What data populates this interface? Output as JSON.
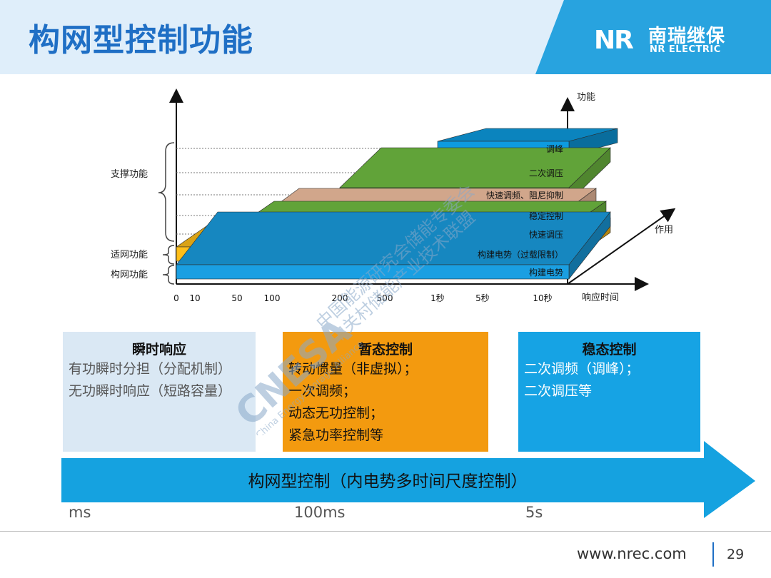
{
  "header": {
    "title": "构网型控制功能",
    "logo_cn": "南瑞继保",
    "logo_en": "NR ELECTRIC"
  },
  "chart": {
    "y_axis_label": "功能",
    "z_axis_label": "作用",
    "x_axis_label": "响应时间",
    "x_ticks": [
      "0",
      "10",
      "50",
      "100",
      "200",
      "500",
      "1秒",
      "5秒",
      "10秒"
    ],
    "groups": [
      {
        "label": "支撑功能"
      },
      {
        "label": "适网功能"
      },
      {
        "label": "构网功能"
      }
    ],
    "bars": [
      {
        "label": "调峰",
        "color": "#0d9be0",
        "start": "1秒",
        "end": "10秒",
        "group": "支撑功能"
      },
      {
        "label": "二次调压",
        "color": "#ffd37a",
        "start": "500",
        "end": "10秒",
        "group": "支撑功能"
      },
      {
        "label": "快速调频、阻尼抑制",
        "color": "#72c043",
        "start": "200",
        "end": "10秒",
        "group": "支撑功能"
      },
      {
        "label": "稳定控制",
        "color": "#f6c3a4",
        "start": "100",
        "end": "10秒",
        "group": "支撑功能"
      },
      {
        "label": "快速调压",
        "color": "#72c043",
        "start": "50",
        "end": "10秒",
        "group": "支撑功能"
      },
      {
        "label": "构建电势（过载限制）",
        "color": "#ffbf1a",
        "start": "0",
        "end": "10秒",
        "group": "适网功能"
      },
      {
        "label": "构建电势",
        "color": "#1a9fe2",
        "start": "0",
        "end": "10秒",
        "group": "构网功能"
      }
    ]
  },
  "boxes": [
    {
      "title": "瞬时响应",
      "lines": [
        "有功瞬时分担（分配机制）",
        "无功瞬时响应（短路容量）"
      ],
      "color": "#dae8f4"
    },
    {
      "title": "暂态控制",
      "lines": [
        "转动惯量（非虚拟）；",
        "一次调频；",
        "动态无功控制；",
        "紧急功率控制等"
      ],
      "color": "#f39a0f"
    },
    {
      "title": "稳态控制",
      "lines": [
        "二次调频（调峰）；",
        "二次调压等"
      ],
      "color": "#16a3e4"
    }
  ],
  "arrow": {
    "label": "构网型控制（内电势多时间尺度控制）",
    "color": "#15a2e0",
    "ticks": [
      "ms",
      "100ms",
      "5s"
    ]
  },
  "watermark": {
    "logo": "CNESA",
    "line1": "中国能源研究会储能专委会",
    "line2": "中关村储能产业技术联盟",
    "en": "China Energy Storage Alliance"
  },
  "footer": {
    "url": "www.nrec.com",
    "page": "29"
  }
}
